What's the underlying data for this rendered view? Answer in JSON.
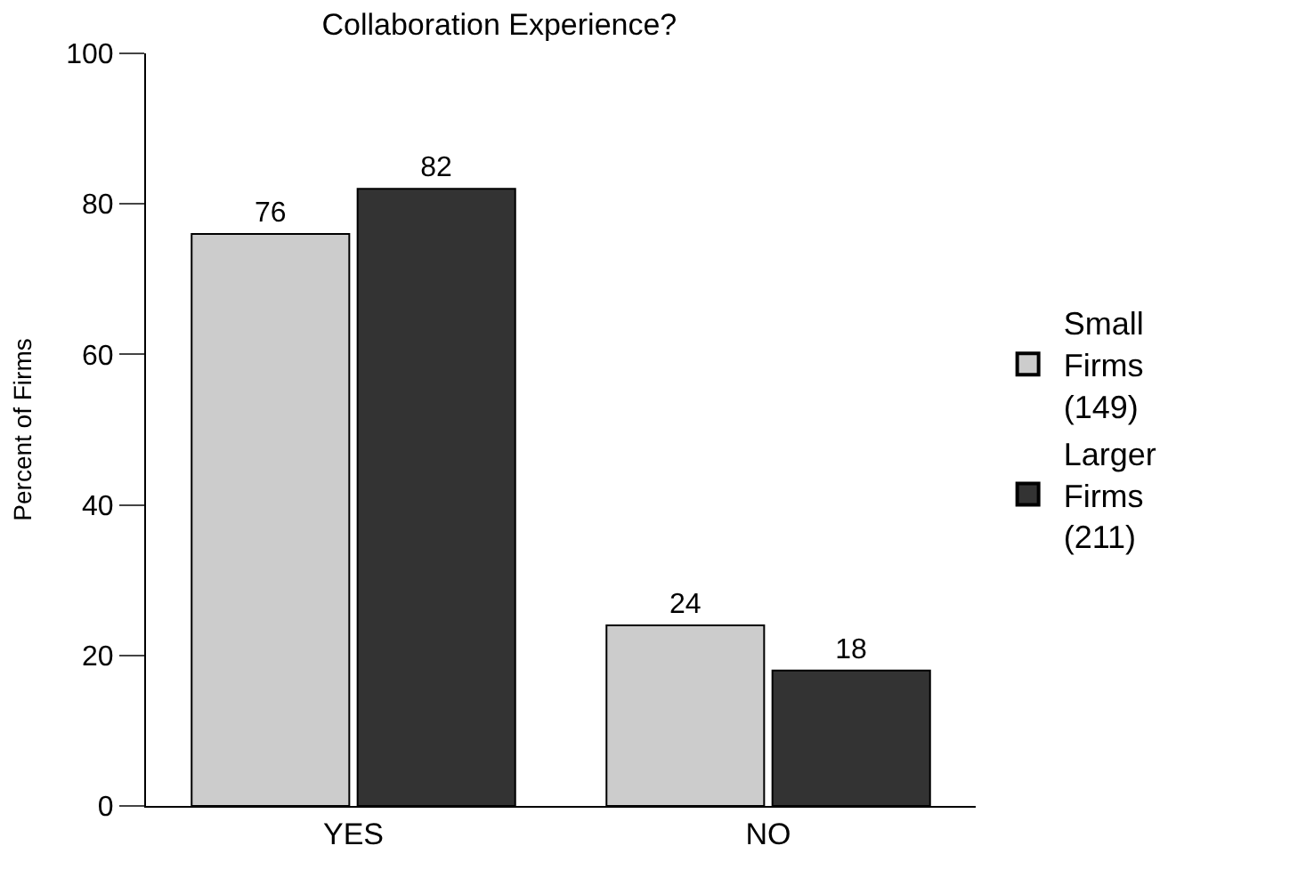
{
  "chart_data": {
    "type": "bar",
    "title": "Collaboration Experience?",
    "ylabel": "Percent of Firms",
    "categories": [
      "YES",
      "NO"
    ],
    "series": [
      {
        "name": "Small Firms (149)",
        "color": "#cccccc",
        "values": [
          76,
          24
        ]
      },
      {
        "name": "Larger Firms (211)",
        "color": "#333333",
        "values": [
          82,
          18
        ]
      }
    ],
    "ylim": [
      0,
      100
    ],
    "yticks": [
      0,
      20,
      40,
      60,
      80,
      100
    ],
    "data_labels": true,
    "legend": "right"
  }
}
